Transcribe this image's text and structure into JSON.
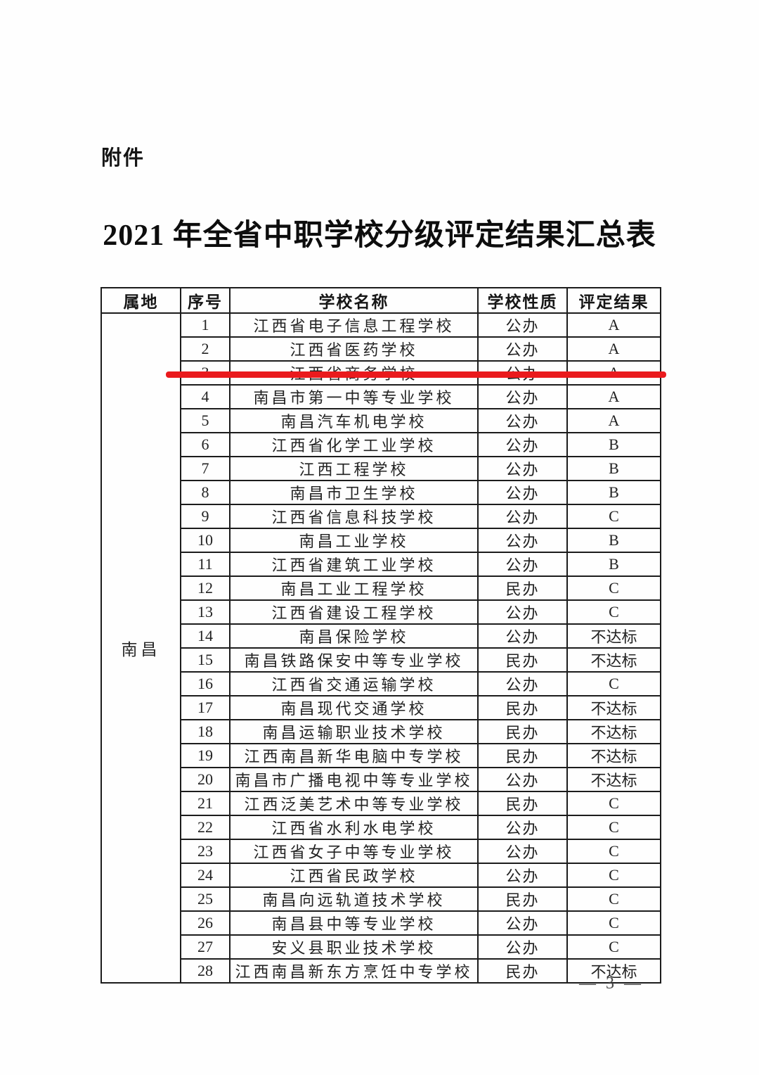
{
  "document": {
    "attachment_label": "附件",
    "title": "2021 年全省中职学校分级评定结果汇总表",
    "page_number": "— 3 —"
  },
  "highlight": {
    "color": "#ea1a1d",
    "highlighted_row_no": "3"
  },
  "table": {
    "headers": [
      "属地",
      "序号",
      "学校名称",
      "学校性质",
      "评定结果"
    ],
    "region": "南昌",
    "rows": [
      {
        "no": "1",
        "name": "江西省电子信息工程学校",
        "nature": "公办",
        "result": "A"
      },
      {
        "no": "2",
        "name": "江西省医药学校",
        "nature": "公办",
        "result": "A"
      },
      {
        "no": "3",
        "name": "江西省商务学校",
        "nature": "公办",
        "result": "A"
      },
      {
        "no": "4",
        "name": "南昌市第一中等专业学校",
        "nature": "公办",
        "result": "A"
      },
      {
        "no": "5",
        "name": "南昌汽车机电学校",
        "nature": "公办",
        "result": "A"
      },
      {
        "no": "6",
        "name": "江西省化学工业学校",
        "nature": "公办",
        "result": "B"
      },
      {
        "no": "7",
        "name": "江西工程学校",
        "nature": "公办",
        "result": "B"
      },
      {
        "no": "8",
        "name": "南昌市卫生学校",
        "nature": "公办",
        "result": "B"
      },
      {
        "no": "9",
        "name": "江西省信息科技学校",
        "nature": "公办",
        "result": "C"
      },
      {
        "no": "10",
        "name": "南昌工业学校",
        "nature": "公办",
        "result": "B"
      },
      {
        "no": "11",
        "name": "江西省建筑工业学校",
        "nature": "公办",
        "result": "B"
      },
      {
        "no": "12",
        "name": "南昌工业工程学校",
        "nature": "民办",
        "result": "C"
      },
      {
        "no": "13",
        "name": "江西省建设工程学校",
        "nature": "公办",
        "result": "C"
      },
      {
        "no": "14",
        "name": "南昌保险学校",
        "nature": "公办",
        "result": "不达标"
      },
      {
        "no": "15",
        "name": "南昌铁路保安中等专业学校",
        "nature": "民办",
        "result": "不达标"
      },
      {
        "no": "16",
        "name": "江西省交通运输学校",
        "nature": "公办",
        "result": "C"
      },
      {
        "no": "17",
        "name": "南昌现代交通学校",
        "nature": "民办",
        "result": "不达标"
      },
      {
        "no": "18",
        "name": "南昌运输职业技术学校",
        "nature": "民办",
        "result": "不达标"
      },
      {
        "no": "19",
        "name": "江西南昌新华电脑中专学校",
        "nature": "民办",
        "result": "不达标"
      },
      {
        "no": "20",
        "name": "南昌市广播电视中等专业学校",
        "nature": "公办",
        "result": "不达标"
      },
      {
        "no": "21",
        "name": "江西泛美艺术中等专业学校",
        "nature": "民办",
        "result": "C"
      },
      {
        "no": "22",
        "name": "江西省水利水电学校",
        "nature": "公办",
        "result": "C"
      },
      {
        "no": "23",
        "name": "江西省女子中等专业学校",
        "nature": "公办",
        "result": "C"
      },
      {
        "no": "24",
        "name": "江西省民政学校",
        "nature": "公办",
        "result": "C"
      },
      {
        "no": "25",
        "name": "南昌向远轨道技术学校",
        "nature": "民办",
        "result": "C"
      },
      {
        "no": "26",
        "name": "南昌县中等专业学校",
        "nature": "公办",
        "result": "C"
      },
      {
        "no": "27",
        "name": "安义县职业技术学校",
        "nature": "公办",
        "result": "C"
      },
      {
        "no": "28",
        "name": "江西南昌新东方烹饪中专学校",
        "nature": "民办",
        "result": "不达标"
      }
    ]
  }
}
